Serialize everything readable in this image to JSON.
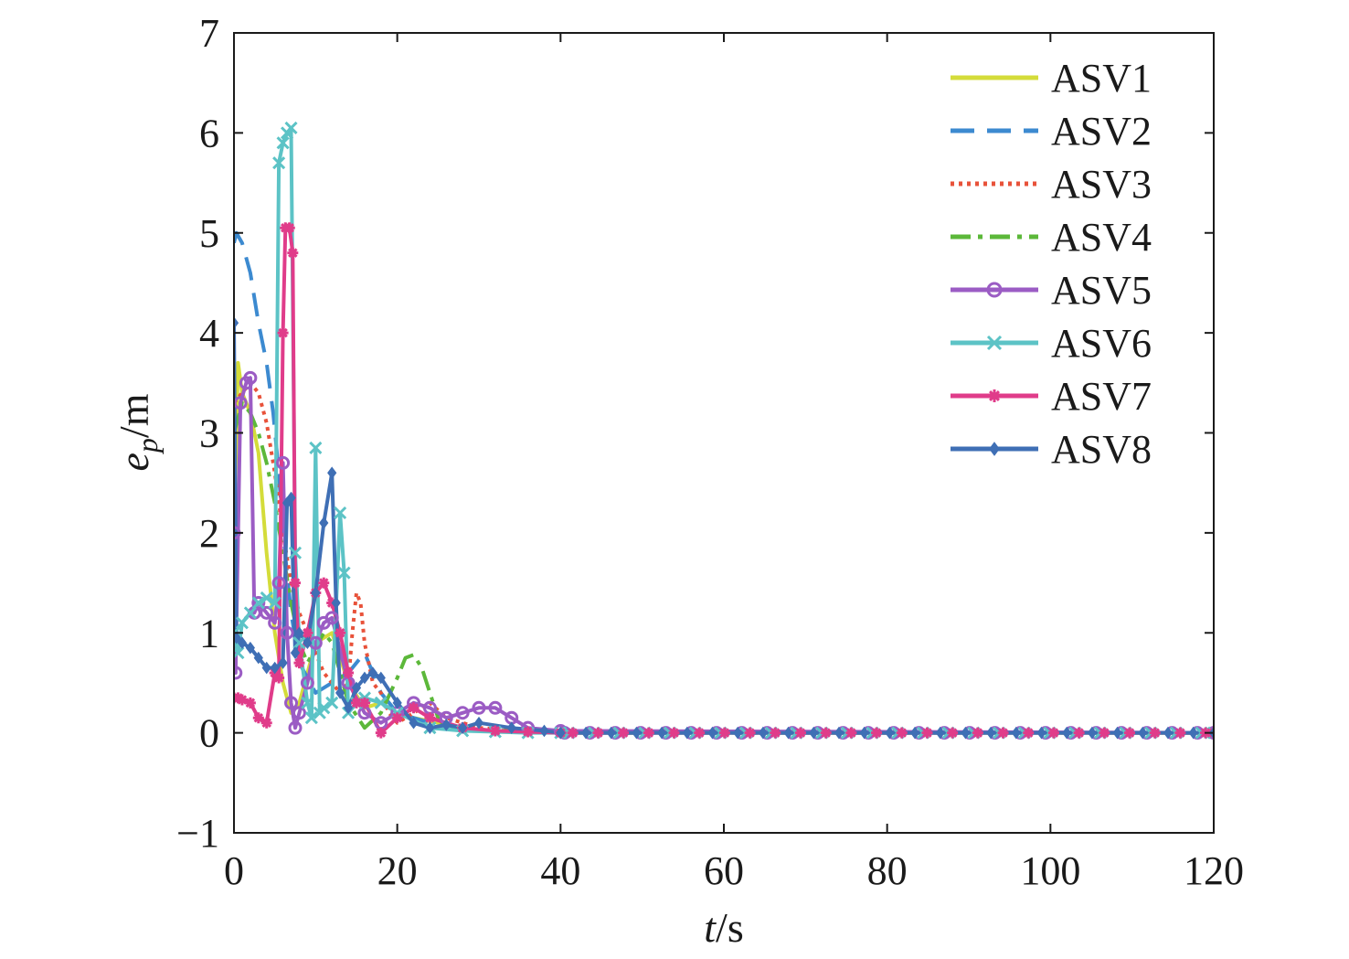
{
  "chart_data": {
    "type": "line",
    "xlabel_main": "t",
    "xlabel_unit": "/s",
    "ylabel_main": "e",
    "ylabel_sub": "p",
    "ylabel_unit": "/m",
    "xlim": [
      0,
      120
    ],
    "ylim": [
      -1,
      7
    ],
    "xticks": [
      0,
      20,
      40,
      60,
      80,
      100,
      120
    ],
    "xtick_labels": [
      "0",
      "20",
      "40",
      "60",
      "80",
      "100",
      "120"
    ],
    "yticks": [
      -1,
      0,
      1,
      2,
      3,
      4,
      5,
      6,
      7
    ],
    "ytick_labels": [
      "−1",
      "0",
      "1",
      "2",
      "3",
      "4",
      "5",
      "6",
      "7"
    ],
    "grid": false,
    "legend_position": "top-right",
    "series": [
      {
        "name": "ASV1",
        "color": "#d4dc3a",
        "style": "solid",
        "marker": "none",
        "x": [
          0,
          0.5,
          1,
          2,
          3,
          4,
          5,
          6,
          7,
          8,
          10,
          12,
          14,
          16,
          18,
          20,
          22,
          25,
          28,
          32,
          36,
          40,
          120
        ],
        "y": [
          2.0,
          3.7,
          3.4,
          3.2,
          2.8,
          1.8,
          1.0,
          0.5,
          0.2,
          0.3,
          0.9,
          1.0,
          0.5,
          0.25,
          0.3,
          0.2,
          0.15,
          0.1,
          0.05,
          0.02,
          0.01,
          0,
          0
        ]
      },
      {
        "name": "ASV2",
        "color": "#3c8ad0",
        "style": "dashed",
        "marker": "none",
        "x": [
          0,
          0.3,
          1,
          2,
          3,
          4,
          4.8,
          5.5,
          6,
          7,
          8,
          10,
          12,
          14,
          16,
          18,
          20,
          24,
          28,
          32,
          36,
          40,
          120
        ],
        "y": [
          4.9,
          5.0,
          4.9,
          4.6,
          4.1,
          3.7,
          3.2,
          2.6,
          2.0,
          1.2,
          0.7,
          0.4,
          0.5,
          0.6,
          0.8,
          0.4,
          0.2,
          0.1,
          0.05,
          0.02,
          0.01,
          0,
          0
        ]
      },
      {
        "name": "ASV3",
        "color": "#e8523a",
        "style": "dotted",
        "marker": "none",
        "x": [
          0,
          1,
          2,
          3,
          4,
          5,
          6,
          7,
          8,
          9,
          10,
          11,
          12,
          13,
          14,
          14.5,
          15,
          15.5,
          16,
          17,
          18,
          19,
          20,
          22,
          24,
          26,
          30,
          35,
          40,
          120
        ],
        "y": [
          3.3,
          3.4,
          3.5,
          3.4,
          3.1,
          2.6,
          2.0,
          1.5,
          1.2,
          1.0,
          0.8,
          0.6,
          0.5,
          0.4,
          0.5,
          1.0,
          1.4,
          1.3,
          0.9,
          0.5,
          0.4,
          0.2,
          0.1,
          0.2,
          0.3,
          0.15,
          0.05,
          0.02,
          0,
          0
        ]
      },
      {
        "name": "ASV4",
        "color": "#5cb83a",
        "style": "dashdot",
        "marker": "none",
        "x": [
          0,
          1,
          2,
          3,
          4,
          5,
          6,
          7,
          8,
          9,
          10,
          11,
          12,
          14,
          16,
          18,
          20,
          21,
          22,
          23,
          24,
          25,
          26,
          28,
          30,
          34,
          38,
          40,
          120
        ],
        "y": [
          3.0,
          3.3,
          3.2,
          3.0,
          2.7,
          2.3,
          1.8,
          1.3,
          0.9,
          0.7,
          0.85,
          1.0,
          0.9,
          0.3,
          0.05,
          0.2,
          0.55,
          0.75,
          0.78,
          0.65,
          0.4,
          0.15,
          0.05,
          0.02,
          0.03,
          0.02,
          0.01,
          0,
          0
        ]
      },
      {
        "name": "ASV5",
        "color": "#9b5cc4",
        "style": "solid",
        "marker": "circle",
        "x": [
          0,
          0.2,
          0.8,
          1.5,
          2,
          2.5,
          3,
          4,
          5,
          5.5,
          6,
          6.5,
          7,
          7.5,
          8,
          9,
          10,
          11,
          12,
          14,
          16,
          18,
          20,
          22,
          24,
          26,
          28,
          30,
          32,
          34,
          36,
          40,
          120
        ],
        "y": [
          2.0,
          0.6,
          3.3,
          3.5,
          3.55,
          1.2,
          1.3,
          1.2,
          1.1,
          1.5,
          2.7,
          1.0,
          0.3,
          0.05,
          0.2,
          0.5,
          0.9,
          1.1,
          1.15,
          0.5,
          0.2,
          0.1,
          0.2,
          0.3,
          0.25,
          0.15,
          0.2,
          0.25,
          0.25,
          0.15,
          0.05,
          0.02,
          0
        ]
      },
      {
        "name": "ASV6",
        "color": "#5cc3c6",
        "style": "solid",
        "marker": "x",
        "x": [
          0,
          0.5,
          1,
          2,
          3,
          4,
          5,
          5.5,
          6,
          6.5,
          7,
          7.5,
          8,
          9,
          9.5,
          10,
          10.5,
          11,
          12,
          13,
          13.5,
          14,
          15,
          16,
          18,
          20,
          24,
          28,
          32,
          36,
          40,
          120
        ],
        "y": [
          1.0,
          0.8,
          1.1,
          1.2,
          1.3,
          1.35,
          1.3,
          5.7,
          5.9,
          6.0,
          6.05,
          1.8,
          0.9,
          0.3,
          0.15,
          2.85,
          0.2,
          0.25,
          0.3,
          2.2,
          1.6,
          0.2,
          0.3,
          0.35,
          0.3,
          0.2,
          0.05,
          0.02,
          0.01,
          0,
          0,
          0
        ]
      },
      {
        "name": "ASV7",
        "color": "#e03c8a",
        "style": "solid",
        "marker": "star",
        "x": [
          0,
          0.5,
          1,
          2,
          3,
          4,
          5,
          5.5,
          6,
          6.3,
          6.8,
          7.2,
          7.5,
          8,
          9,
          10,
          11,
          12,
          13,
          14,
          15,
          16,
          18,
          20,
          22,
          24,
          28,
          32,
          36,
          40,
          120
        ],
        "y": [
          0.35,
          0.35,
          0.33,
          0.3,
          0.15,
          0.1,
          0.6,
          0.55,
          4.0,
          5.05,
          5.05,
          4.8,
          1.5,
          0.7,
          1.0,
          1.4,
          1.5,
          1.3,
          1.0,
          0.6,
          0.3,
          0.3,
          0.0,
          0.15,
          0.25,
          0.15,
          0.05,
          0.02,
          0.01,
          0,
          0
        ]
      },
      {
        "name": "ASV8",
        "color": "#3f6fb5",
        "style": "solid",
        "marker": "diamond",
        "x": [
          0,
          0.3,
          1,
          2,
          3,
          4,
          5,
          6,
          6.5,
          7,
          7.5,
          8,
          9,
          10,
          11,
          12,
          12.5,
          13,
          14,
          15,
          16,
          17,
          18,
          20,
          22,
          24,
          26,
          28,
          30,
          34,
          38,
          40,
          120
        ],
        "y": [
          4.1,
          0.95,
          0.9,
          0.85,
          0.75,
          0.65,
          0.65,
          0.7,
          2.3,
          2.35,
          0.8,
          1.0,
          0.9,
          1.4,
          2.1,
          2.6,
          1.3,
          0.4,
          0.25,
          0.45,
          0.55,
          0.6,
          0.55,
          0.3,
          0.1,
          0.05,
          0.08,
          0.05,
          0.1,
          0.05,
          0.02,
          0,
          0
        ]
      }
    ]
  }
}
